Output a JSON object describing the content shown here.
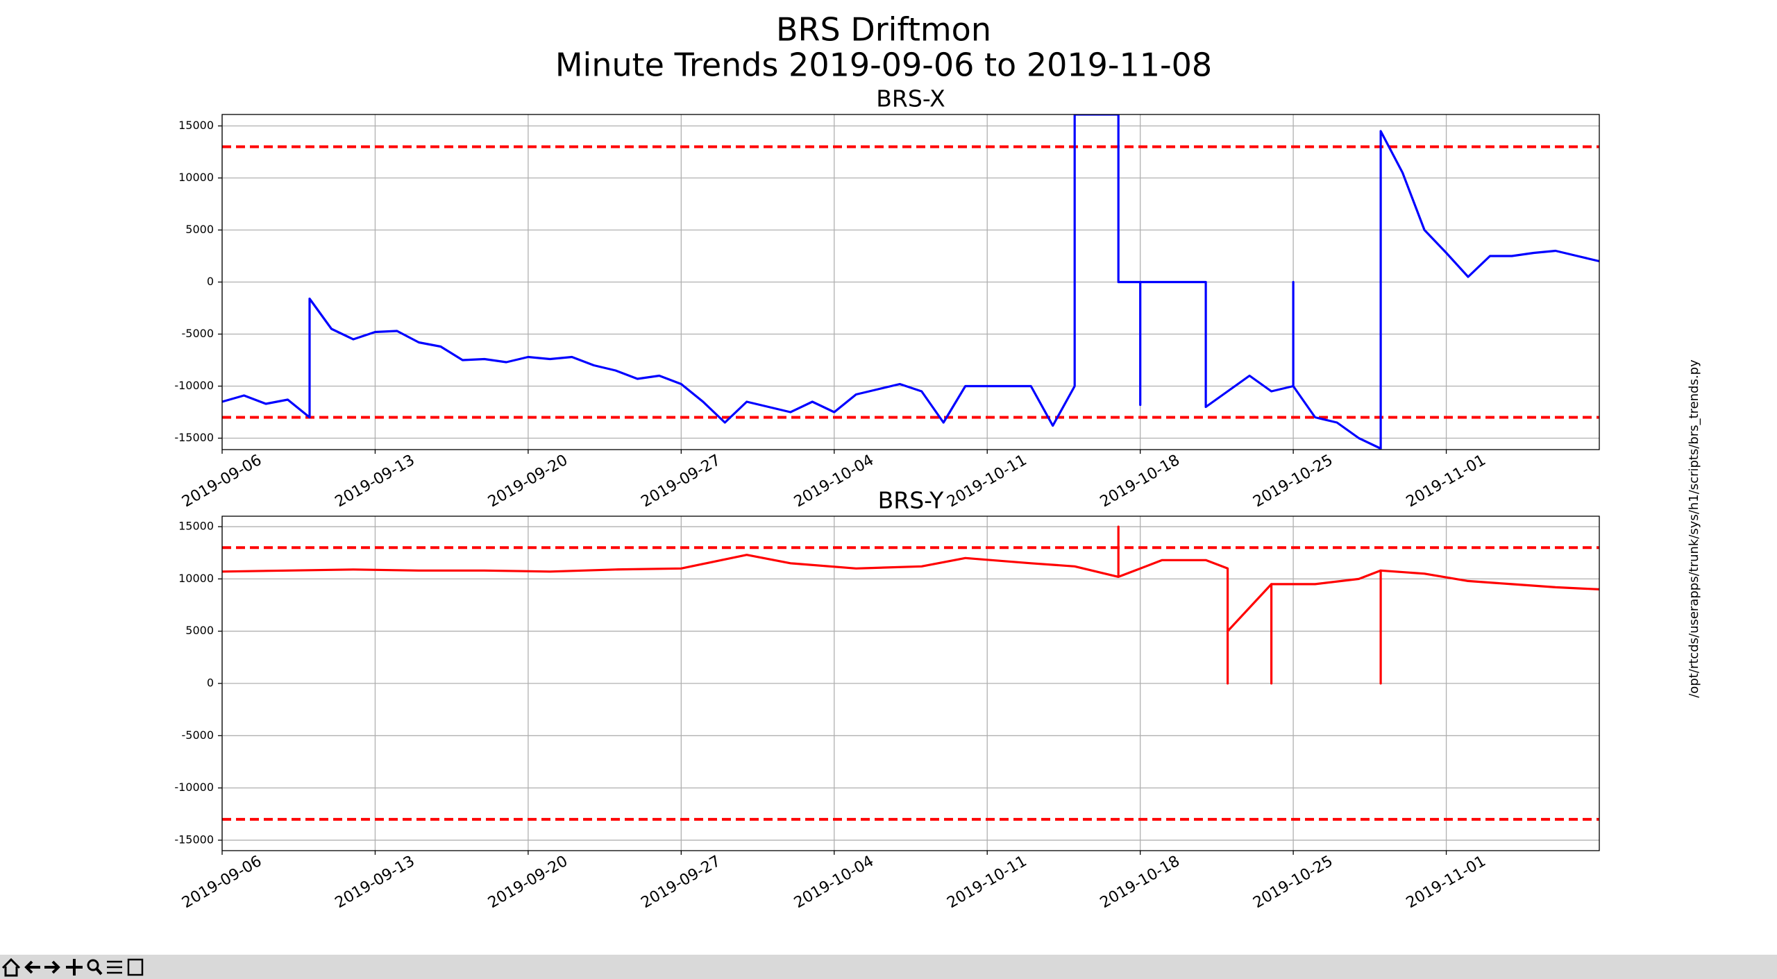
{
  "title": [
    "BRS Driftmon",
    "Minute Trends 2019-09-06  to 2019-11-08"
  ],
  "side_label": "/opt/rtcds/userapps/trunk/sys/h1/scripts/brs_trends.py",
  "chart_data": [
    {
      "type": "line",
      "title": "BRS-X",
      "x": [
        "2019-09-06",
        "2019-09-07",
        "2019-09-08",
        "2019-09-09",
        "2019-09-10",
        "2019-09-10",
        "2019-09-11",
        "2019-09-12",
        "2019-09-13",
        "2019-09-14",
        "2019-09-15",
        "2019-09-16",
        "2019-09-17",
        "2019-09-18",
        "2019-09-19",
        "2019-09-20",
        "2019-09-21",
        "2019-09-22",
        "2019-09-23",
        "2019-09-24",
        "2019-09-25",
        "2019-09-26",
        "2019-09-27",
        "2019-09-28",
        "2019-09-29",
        "2019-09-30",
        "2019-10-01",
        "2019-10-02",
        "2019-10-03",
        "2019-10-04",
        "2019-10-05",
        "2019-10-06",
        "2019-10-07",
        "2019-10-08",
        "2019-10-09",
        "2019-10-10",
        "2019-10-11",
        "2019-10-12",
        "2019-10-13",
        "2019-10-14",
        "2019-10-15",
        "2019-10-15",
        "2019-10-16",
        "2019-10-17",
        "2019-10-17",
        "2019-10-18",
        "2019-10-18",
        "2019-10-18",
        "2019-10-19",
        "2019-10-20",
        "2019-10-21",
        "2019-10-21",
        "2019-10-22",
        "2019-10-23",
        "2019-10-24",
        "2019-10-25",
        "2019-10-25",
        "2019-10-25",
        "2019-10-26",
        "2019-10-27",
        "2019-10-28",
        "2019-10-29",
        "2019-10-29",
        "2019-10-30",
        "2019-10-31",
        "2019-11-01",
        "2019-11-02",
        "2019-11-03",
        "2019-11-04",
        "2019-11-05",
        "2019-11-06",
        "2019-11-07",
        "2019-11-08"
      ],
      "series": [
        {
          "color": "#0000ff",
          "values": [
            -11500,
            -10900,
            -11700,
            -11300,
            -13000,
            -1600,
            -4500,
            -5500,
            -4800,
            -4700,
            -5800,
            -6200,
            -7500,
            -7400,
            -7700,
            -7200,
            -7400,
            -7200,
            -8000,
            -8500,
            -9300,
            -9000,
            -9800,
            -11500,
            -13500,
            -11500,
            -12000,
            -12500,
            -11500,
            -12500,
            -10800,
            -10300,
            -9800,
            -10500,
            -13500,
            -10000,
            -10000,
            -10000,
            -10000,
            -13800,
            -10000,
            16100,
            16100,
            16100,
            0,
            0,
            -11800,
            0,
            0,
            0,
            0,
            -12000,
            -10500,
            -9000,
            -10500,
            -10000,
            0,
            -10000,
            -13000,
            -13500,
            -15000,
            -16000,
            14500,
            10500,
            5000,
            2800,
            500,
            2500,
            2500,
            2800,
            3000,
            2500,
            2000
          ]
        }
      ],
      "xlim": [
        "2019-09-06",
        "2019-11-08"
      ],
      "xticks": [
        "2019-09-06",
        "2019-09-13",
        "2019-09-20",
        "2019-09-27",
        "2019-10-04",
        "2019-10-11",
        "2019-10-18",
        "2019-10-25",
        "2019-11-01"
      ],
      "ylim": [
        -16100,
        16100
      ],
      "yticks": [
        -15000,
        -10000,
        -5000,
        0,
        5000,
        10000,
        15000
      ],
      "hlines": [
        13000,
        -13000
      ],
      "hline_color": "#ff0000",
      "grid": true
    },
    {
      "type": "line",
      "title": "BRS-Y",
      "x": [
        "2019-09-06",
        "2019-09-09",
        "2019-09-12",
        "2019-09-15",
        "2019-09-18",
        "2019-09-21",
        "2019-09-24",
        "2019-09-27",
        "2019-09-30",
        "2019-10-02",
        "2019-10-05",
        "2019-10-08",
        "2019-10-10",
        "2019-10-13",
        "2019-10-15",
        "2019-10-17",
        "2019-10-17",
        "2019-10-17",
        "2019-10-19",
        "2019-10-21",
        "2019-10-22",
        "2019-10-22",
        "2019-10-22",
        "2019-10-24",
        "2019-10-24",
        "2019-10-24",
        "2019-10-26",
        "2019-10-28",
        "2019-10-29",
        "2019-10-29",
        "2019-10-29",
        "2019-10-31",
        "2019-11-02",
        "2019-11-04",
        "2019-11-06",
        "2019-11-08"
      ],
      "series": [
        {
          "color": "#ff0000",
          "values": [
            10700,
            10800,
            10900,
            10800,
            10800,
            10700,
            10900,
            11000,
            12300,
            11500,
            11000,
            11200,
            12000,
            11500,
            11200,
            10200,
            15000,
            10200,
            11800,
            11800,
            11000,
            0,
            5000,
            9500,
            0,
            9500,
            9500,
            10000,
            10800,
            0,
            10800,
            10500,
            9800,
            9500,
            9200,
            9000
          ]
        }
      ],
      "xlim": [
        "2019-09-06",
        "2019-11-08"
      ],
      "xticks": [
        "2019-09-06",
        "2019-09-13",
        "2019-09-20",
        "2019-09-27",
        "2019-10-04",
        "2019-10-11",
        "2019-10-18",
        "2019-10-25",
        "2019-11-01"
      ],
      "ylim": [
        -16000,
        16000
      ],
      "yticks": [
        -15000,
        -10000,
        -5000,
        0,
        5000,
        10000,
        15000
      ],
      "hlines": [
        13000,
        -13000
      ],
      "hline_color": "#ff0000",
      "grid": true
    }
  ]
}
